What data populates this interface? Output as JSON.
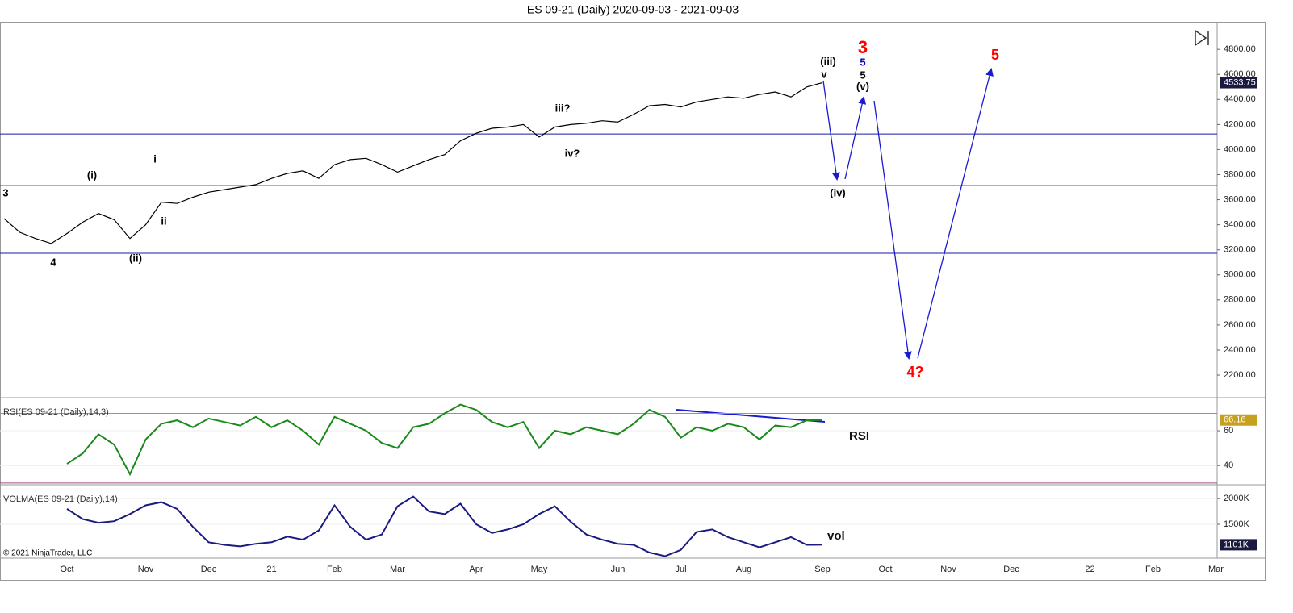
{
  "title": "ES 09-21 (Daily)  2020-09-03 - 2021-09-03",
  "copyright": "© 2021 NinjaTrader, LLC",
  "chart_data": [
    {
      "type": "line",
      "categories": [
        null,
        null,
        null,
        null,
        "Oct",
        null,
        null,
        null,
        null,
        "Nov",
        null,
        null,
        null,
        "Dec",
        null,
        null,
        null,
        "21",
        null,
        null,
        null,
        "Feb",
        null,
        null,
        null,
        "Mar",
        null,
        null,
        null,
        null,
        "Apr",
        null,
        null,
        null,
        "May",
        null,
        null,
        null,
        null,
        "Jun",
        null,
        null,
        null,
        "Jul",
        null,
        null,
        null,
        "Aug",
        null,
        null,
        null,
        null,
        "Sep",
        null,
        null,
        null,
        "Oct",
        null,
        null,
        null,
        "Nov",
        null,
        null,
        null,
        "Dec",
        null,
        null,
        null,
        null,
        "22",
        null,
        null,
        null,
        "Feb",
        null,
        null,
        null,
        "Mar"
      ],
      "values": [
        3450,
        3340,
        3290,
        3250,
        3330,
        3420,
        3490,
        3440,
        3290,
        3400,
        3580,
        3570,
        3620,
        3660,
        3680,
        3700,
        3720,
        3770,
        3810,
        3830,
        3770,
        3880,
        3920,
        3930,
        3880,
        3820,
        3870,
        3920,
        3960,
        4070,
        4130,
        4170,
        4180,
        4200,
        4100,
        4180,
        4200,
        4210,
        4230,
        4220,
        4280,
        4350,
        4360,
        4340,
        4380,
        4400,
        4420,
        4410,
        4440,
        4460,
        4420,
        4500,
        4533.75,
        null,
        null,
        null,
        null,
        null,
        null,
        null,
        null,
        null,
        null,
        null,
        null,
        null,
        null,
        null,
        null,
        null,
        null,
        null,
        null,
        null,
        null,
        null,
        null,
        null
      ],
      "value_labels": [
        null,
        null,
        null,
        null,
        null,
        null,
        null,
        null,
        null,
        null,
        null,
        null,
        null,
        null,
        null,
        null,
        null,
        null,
        null,
        null,
        null,
        null,
        null,
        null,
        null,
        null,
        null,
        null,
        null,
        null,
        null,
        null,
        null,
        null,
        null,
        null,
        null,
        null,
        null,
        null,
        null,
        null,
        null,
        null,
        null,
        null,
        null,
        null,
        null,
        null,
        null,
        null,
        "4533.75",
        null,
        null,
        null,
        null,
        null,
        null,
        null,
        null,
        null,
        null,
        null,
        null,
        null,
        null,
        null,
        null,
        null,
        null,
        null,
        null,
        null,
        null,
        null,
        null,
        null
      ],
      "color": "#000000",
      "ylim": [
        2020,
        5020
      ],
      "yticks": [
        {
          "value": 2200,
          "label": "2200.00"
        },
        {
          "value": 2400,
          "label": "2400.00"
        },
        {
          "value": 2600,
          "label": "2600.00"
        },
        {
          "value": 2800,
          "label": "2800.00"
        },
        {
          "value": 3000,
          "label": "3000.00"
        },
        {
          "value": 3200,
          "label": "3200.00"
        },
        {
          "value": 3400,
          "label": "3400.00"
        },
        {
          "value": 3600,
          "label": "3600.00"
        },
        {
          "value": 3800,
          "label": "3800.00"
        },
        {
          "value": 4000,
          "label": "4000.00"
        },
        {
          "value": 4200,
          "label": "4200.00"
        },
        {
          "value": 4400,
          "label": "4400.00"
        },
        {
          "value": 4600,
          "label": "4600.00"
        },
        {
          "value": 4800,
          "label": "4800.00"
        }
      ],
      "hlines": [
        4124,
        3712,
        3172
      ],
      "hline_color": "#1a1aa6",
      "annotations": [
        {
          "text": "3",
          "color": "#000000"
        },
        {
          "text": "4",
          "color": "#000000"
        },
        {
          "text": "(i)",
          "color": "#000000"
        },
        {
          "text": "(ii)",
          "color": "#000000"
        },
        {
          "text": "i",
          "color": "#000000"
        },
        {
          "text": "ii",
          "color": "#000000"
        },
        {
          "text": "iii?",
          "color": "#000000"
        },
        {
          "text": "iv?",
          "color": "#000000"
        },
        {
          "text": "(iii)",
          "color": "#000000"
        },
        {
          "text": "v",
          "color": "#000000"
        },
        {
          "text": "3",
          "color": "#ff0000"
        },
        {
          "text": "5",
          "color": "#0000cc"
        },
        {
          "text": "5",
          "color": "#000000"
        },
        {
          "text": "(v)",
          "color": "#000000"
        },
        {
          "text": "(iv)",
          "color": "#000000"
        },
        {
          "text": "4?",
          "color": "#ff0000"
        },
        {
          "text": "5",
          "color": "#ff0000"
        }
      ]
    },
    {
      "type": "line",
      "label": "RSI(ES 09-21 (Daily),14,3)",
      "annotation": "RSI",
      "values": [
        null,
        null,
        null,
        null,
        41,
        47,
        58,
        52,
        35,
        55,
        64,
        66,
        62,
        67,
        65,
        63,
        68,
        62,
        66,
        60,
        52,
        68,
        64,
        60,
        53,
        50,
        62,
        64,
        70,
        75,
        72,
        65,
        62,
        65,
        50,
        60,
        58,
        62,
        60,
        58,
        64,
        72,
        68,
        56,
        62,
        60,
        64,
        62,
        55,
        63,
        62,
        66,
        66.16,
        null,
        null,
        null,
        null,
        null,
        null,
        null,
        null,
        null,
        null,
        null,
        null,
        null,
        null,
        null,
        null,
        null,
        null,
        null,
        null,
        null,
        null,
        null,
        null,
        null
      ],
      "value_labels": [
        null,
        null,
        null,
        null,
        null,
        null,
        null,
        null,
        null,
        null,
        null,
        null,
        null,
        null,
        null,
        null,
        null,
        null,
        null,
        null,
        null,
        null,
        null,
        null,
        null,
        null,
        null,
        null,
        null,
        null,
        null,
        null,
        null,
        null,
        null,
        null,
        null,
        null,
        null,
        null,
        null,
        null,
        null,
        null,
        null,
        null,
        null,
        null,
        null,
        null,
        null,
        null,
        "66.16",
        null,
        null,
        null,
        null,
        null,
        null,
        null,
        null,
        null,
        null,
        null,
        null,
        null,
        null,
        null,
        null,
        null,
        null,
        null,
        null,
        null,
        null,
        null,
        null,
        null
      ],
      "color": "#1a8a1a",
      "ylim": [
        29,
        79
      ],
      "yticks": [
        40,
        60
      ],
      "hlines": [
        70,
        30
      ],
      "hline_colors": [
        "#a0a040",
        "#a04a8a"
      ]
    },
    {
      "type": "line",
      "label": "VOLMA(ES 09-21 (Daily),14)",
      "annotation": "vol",
      "values": [
        null,
        null,
        null,
        null,
        1800000,
        1600000,
        1530000,
        1560000,
        1700000,
        1870000,
        1930000,
        1800000,
        1450000,
        1150000,
        1100000,
        1070000,
        1120000,
        1150000,
        1260000,
        1200000,
        1380000,
        1870000,
        1450000,
        1200000,
        1300000,
        1850000,
        2040000,
        1750000,
        1700000,
        1900000,
        1500000,
        1330000,
        1400000,
        1500000,
        1700000,
        1850000,
        1550000,
        1300000,
        1200000,
        1120000,
        1100000,
        950000,
        880000,
        1000000,
        1350000,
        1400000,
        1250000,
        1150000,
        1050000,
        1150000,
        1250000,
        1100000,
        1101000,
        null,
        null,
        null,
        null,
        null,
        null,
        null,
        null,
        null,
        null,
        null,
        null,
        null,
        null,
        null,
        null,
        null,
        null,
        null,
        null,
        null,
        null,
        null,
        null,
        null
      ],
      "value_labels": [
        null,
        null,
        null,
        null,
        null,
        null,
        null,
        null,
        null,
        null,
        null,
        null,
        null,
        null,
        null,
        null,
        null,
        null,
        null,
        null,
        null,
        null,
        null,
        null,
        null,
        null,
        null,
        null,
        null,
        null,
        null,
        null,
        null,
        null,
        null,
        null,
        null,
        null,
        null,
        null,
        null,
        null,
        null,
        null,
        null,
        null,
        null,
        null,
        null,
        null,
        null,
        null,
        "1101K",
        null,
        null,
        null,
        null,
        null,
        null,
        null,
        null,
        null,
        null,
        null,
        null,
        null,
        null,
        null,
        null,
        null,
        null,
        null,
        null,
        null,
        null,
        null,
        null,
        null
      ],
      "color": "#1a1a80",
      "ylim": [
        840000,
        2270000
      ],
      "yticks": [
        {
          "value": 1500000,
          "label": "1500K"
        },
        {
          "value": 2000000,
          "label": "2000K"
        }
      ]
    }
  ]
}
